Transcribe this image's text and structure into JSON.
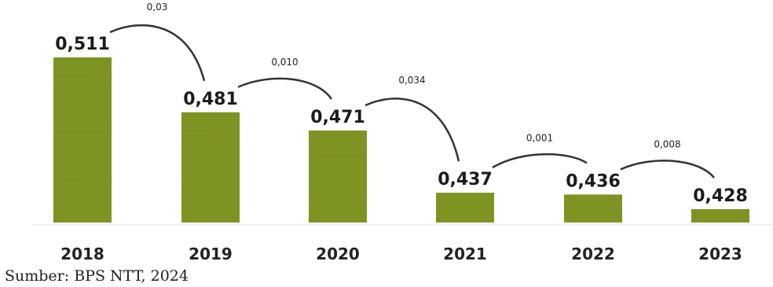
{
  "chart_data": {
    "type": "bar",
    "categories": [
      "2018",
      "2019",
      "2020",
      "2021",
      "2022",
      "2023"
    ],
    "values": [
      0.511,
      0.481,
      0.471,
      0.437,
      0.436,
      0.428
    ],
    "value_labels": [
      "0,511",
      "0,481",
      "0,471",
      "0,437",
      "0,436",
      "0,428"
    ],
    "changes": [
      {
        "from": "2018",
        "to": "2019",
        "label": "0,03"
      },
      {
        "from": "2019",
        "to": "2020",
        "label": "0,010"
      },
      {
        "from": "2020",
        "to": "2021",
        "label": "0,034"
      },
      {
        "from": "2021",
        "to": "2022",
        "label": "0,001"
      },
      {
        "from": "2022",
        "to": "2023",
        "label": "0,008"
      }
    ],
    "title": "",
    "xlabel": "",
    "ylabel": "",
    "highlight_category": "2023",
    "colors": {
      "bar": "#7d9423",
      "highlight_text": "#7d9423",
      "text": "#222222"
    }
  },
  "source": "Sumber: BPS NTT, 2024"
}
